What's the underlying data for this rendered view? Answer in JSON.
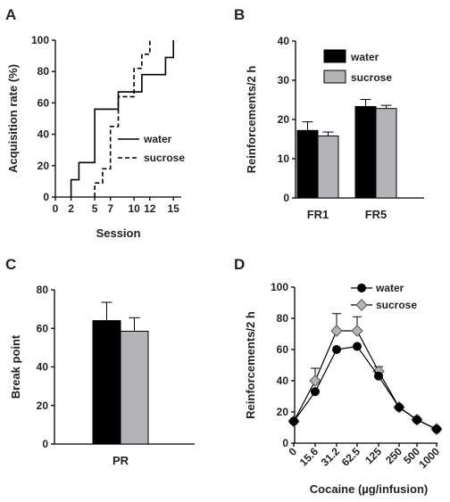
{
  "panels": {
    "A": {
      "label": "A"
    },
    "B": {
      "label": "B"
    },
    "C": {
      "label": "C"
    },
    "D": {
      "label": "D"
    }
  },
  "colors": {
    "water": "#000000",
    "sucrose": "#b4b4b8",
    "line": "#000000"
  },
  "chart_data": [
    {
      "panel": "A",
      "type": "line",
      "xlabel": "Session",
      "ylabel": "Acquisition rate (%)",
      "xlim": [
        0,
        16
      ],
      "ylim": [
        0,
        100
      ],
      "xticks": [
        0,
        2,
        5,
        7,
        10,
        12,
        15
      ],
      "yticks": [
        0,
        20,
        40,
        60,
        80,
        100
      ],
      "legend_position": "center-right",
      "series": [
        {
          "name": "water",
          "style": "solid",
          "x": [
            2,
            2,
            3,
            3,
            5,
            5,
            8,
            8,
            11,
            11,
            14,
            14,
            15,
            15
          ],
          "y": [
            0,
            11,
            11,
            22,
            22,
            56,
            56,
            67,
            67,
            78,
            78,
            89,
            89,
            100
          ]
        },
        {
          "name": "sucrose",
          "style": "dashed",
          "x": [
            5,
            5,
            6,
            6,
            7,
            7,
            8,
            8,
            10,
            10,
            11,
            11,
            12,
            12
          ],
          "y": [
            0,
            9,
            9,
            18,
            18,
            45,
            45,
            64,
            64,
            82,
            82,
            91,
            91,
            100
          ]
        }
      ]
    },
    {
      "panel": "B",
      "type": "bar",
      "xlabel": "",
      "ylabel": "Reinforcements/2 h",
      "ylim": [
        0,
        40
      ],
      "yticks": [
        0,
        10,
        20,
        30,
        40
      ],
      "categories": [
        "FR1",
        "FR5"
      ],
      "legend_position": "top-left",
      "series": [
        {
          "name": "water",
          "values": [
            17.2,
            23.3
          ],
          "errors": [
            2.2,
            1.8
          ]
        },
        {
          "name": "sucrose",
          "values": [
            15.8,
            22.8
          ],
          "errors": [
            1.0,
            0.8
          ]
        }
      ]
    },
    {
      "panel": "C",
      "type": "bar",
      "xlabel": "",
      "ylabel": "Break point",
      "ylim": [
        0,
        80
      ],
      "yticks": [
        0,
        20,
        40,
        60,
        80
      ],
      "categories": [
        "PR"
      ],
      "series": [
        {
          "name": "water",
          "values": [
            64
          ],
          "errors": [
            9.5
          ]
        },
        {
          "name": "sucrose",
          "values": [
            58.5
          ],
          "errors": [
            7
          ]
        }
      ]
    },
    {
      "panel": "D",
      "type": "line",
      "xlabel": "Cocaine (µg/infusion)",
      "ylabel": "Reinforcements/2 h",
      "ylim": [
        0,
        100
      ],
      "yticks": [
        0,
        20,
        40,
        60,
        80,
        100
      ],
      "categories": [
        "0",
        "15.6",
        "31.2",
        "62.5",
        "125",
        "250",
        "500",
        "1000"
      ],
      "legend_position": "top-right",
      "series": [
        {
          "name": "water",
          "marker": "circle",
          "values": [
            14,
            33,
            60,
            62,
            43,
            23,
            15,
            9
          ],
          "errors": [
            0,
            0,
            0,
            0,
            0,
            0,
            0,
            0
          ]
        },
        {
          "name": "sucrose",
          "marker": "diamond",
          "values": [
            14,
            40,
            72,
            72,
            46,
            23,
            15,
            9
          ],
          "errors": [
            0,
            8,
            11,
            9,
            3,
            0,
            0,
            0
          ]
        }
      ]
    }
  ]
}
